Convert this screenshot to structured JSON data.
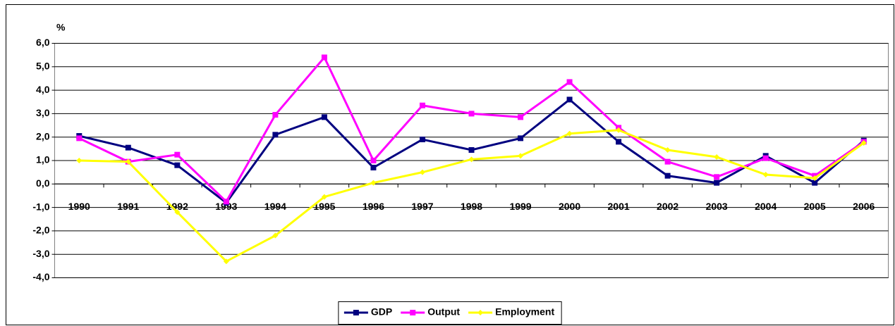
{
  "chart_data": {
    "type": "line",
    "y_label": "%",
    "categories": [
      "1990",
      "1991",
      "1992",
      "1993",
      "1994",
      "1995",
      "1996",
      "1997",
      "1998",
      "1999",
      "2000",
      "2001",
      "2002",
      "2003",
      "2004",
      "2005",
      "2006"
    ],
    "series": [
      {
        "name": "GDP",
        "color": "#000080",
        "marker": "square",
        "values": [
          2.05,
          1.55,
          0.8,
          -0.8,
          2.1,
          2.85,
          0.7,
          1.9,
          1.45,
          1.95,
          3.6,
          1.8,
          0.35,
          0.05,
          1.2,
          0.05,
          1.85
        ]
      },
      {
        "name": "Output",
        "color": "#ff00ff",
        "marker": "square",
        "values": [
          1.95,
          0.95,
          1.25,
          -0.75,
          2.95,
          5.4,
          1.0,
          3.35,
          3.0,
          2.85,
          4.35,
          2.4,
          0.95,
          0.3,
          1.1,
          0.35,
          1.8
        ]
      },
      {
        "name": "Employment",
        "color": "#ffff00",
        "marker": "diamond",
        "values": [
          1.0,
          0.95,
          -1.2,
          -3.3,
          -2.2,
          -0.55,
          0.05,
          0.5,
          1.05,
          1.2,
          2.15,
          2.3,
          1.45,
          1.15,
          0.4,
          0.25,
          1.75
        ]
      }
    ],
    "ylim": [
      -4,
      6
    ],
    "yticks": [
      {
        "value": -4,
        "label": "-4,0"
      },
      {
        "value": -3,
        "label": "-3,0"
      },
      {
        "value": -2,
        "label": "-2,0"
      },
      {
        "value": -1,
        "label": "-1,0"
      },
      {
        "value": 0,
        "label": "0,0"
      },
      {
        "value": 1,
        "label": "1,0"
      },
      {
        "value": 2,
        "label": "2,0"
      },
      {
        "value": 3,
        "label": "3,0"
      },
      {
        "value": 4,
        "label": "4,0"
      },
      {
        "value": 5,
        "label": "5,0"
      },
      {
        "value": 6,
        "label": "6,0"
      }
    ],
    "grid": true,
    "legend": "bottom"
  }
}
